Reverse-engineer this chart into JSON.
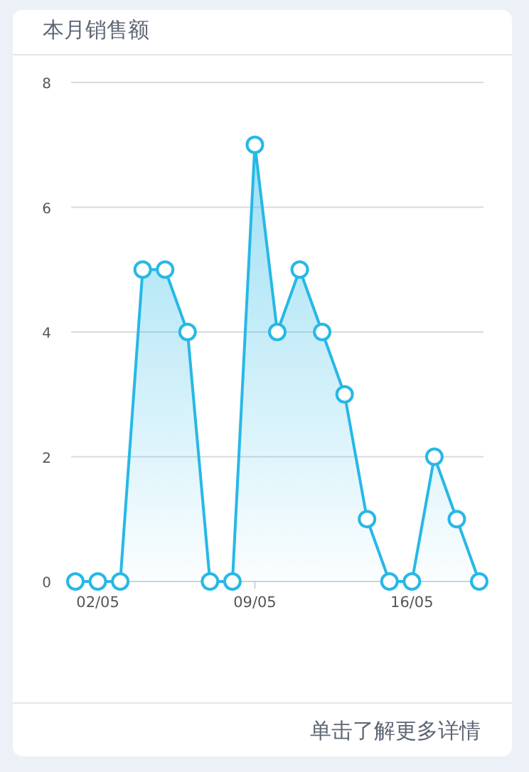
{
  "chart_data": {
    "type": "area",
    "title": "本月销售额",
    "categories": [
      null,
      "02/05",
      null,
      null,
      null,
      null,
      null,
      null,
      "09/05",
      null,
      null,
      null,
      null,
      null,
      null,
      "16/05",
      null,
      null,
      null
    ],
    "values": [
      0,
      0,
      0,
      5,
      5,
      4,
      0,
      0,
      7,
      4,
      5,
      4,
      3,
      1,
      0,
      0,
      2,
      1,
      0
    ],
    "color": "#27b8e6",
    "ylim": [
      0,
      8
    ],
    "yticks": [
      0,
      2,
      4,
      6,
      8
    ],
    "grid": "y",
    "marker": "circle",
    "annotations": [
      "单击了解更多详情"
    ]
  }
}
